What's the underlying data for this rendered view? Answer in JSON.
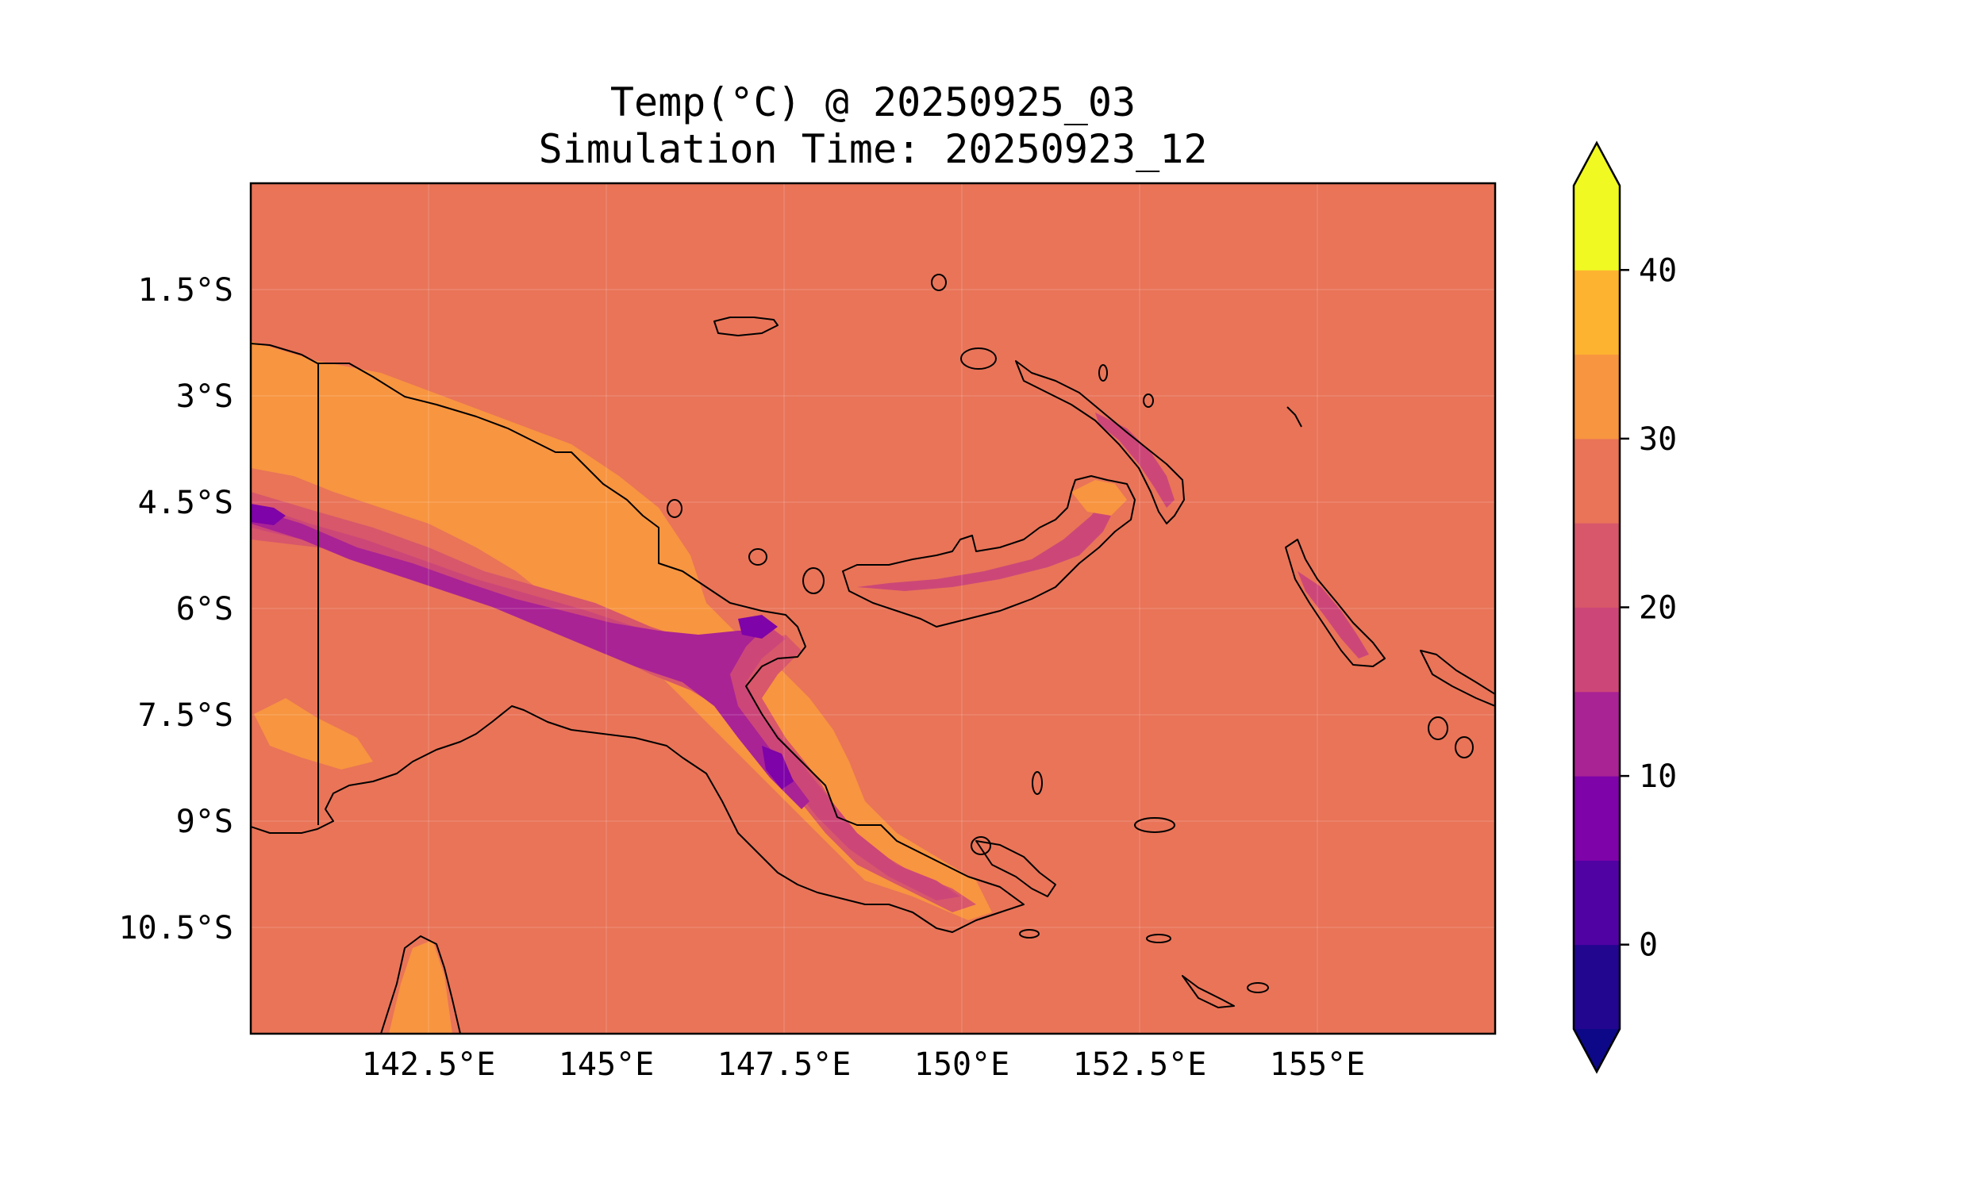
{
  "title": "Temp(°C) @ 20250925_03",
  "subtitle": "Simulation Time: 20250923_12",
  "map": {
    "xticks": [
      "142.5°E",
      "145°E",
      "147.5°E",
      "150°E",
      "152.5°E",
      "155°E"
    ],
    "xtick_values": [
      142.5,
      145,
      147.5,
      150,
      152.5,
      155
    ],
    "yticks": [
      "1.5°S",
      "3°S",
      "4.5°S",
      "6°S",
      "7.5°S",
      "9°S",
      "10.5°S"
    ],
    "ytick_values": [
      -1.5,
      -3,
      -4.5,
      -6,
      -7.5,
      -9,
      -10.5
    ],
    "lon_range": [
      140.0,
      157.5
    ],
    "lat_range": [
      -12.0,
      0.0
    ],
    "background_color": "#e97458",
    "gridlines": true
  },
  "colorbar": {
    "levels": [
      -5,
      0,
      5,
      10,
      15,
      20,
      25,
      30,
      35,
      40,
      45
    ],
    "colors": [
      "#220690",
      "#5102a3",
      "#7e03a8",
      "#a92395",
      "#cc4778",
      "#d8576b",
      "#e97458",
      "#f89540",
      "#fdb32f",
      "#f0f921"
    ],
    "under_color": "#0d0887",
    "over_color": "#f0f921",
    "tick_labels": [
      "0",
      "10",
      "20",
      "30",
      "40"
    ],
    "tick_values": [
      0,
      10,
      20,
      30,
      40
    ],
    "extend": "both"
  }
}
